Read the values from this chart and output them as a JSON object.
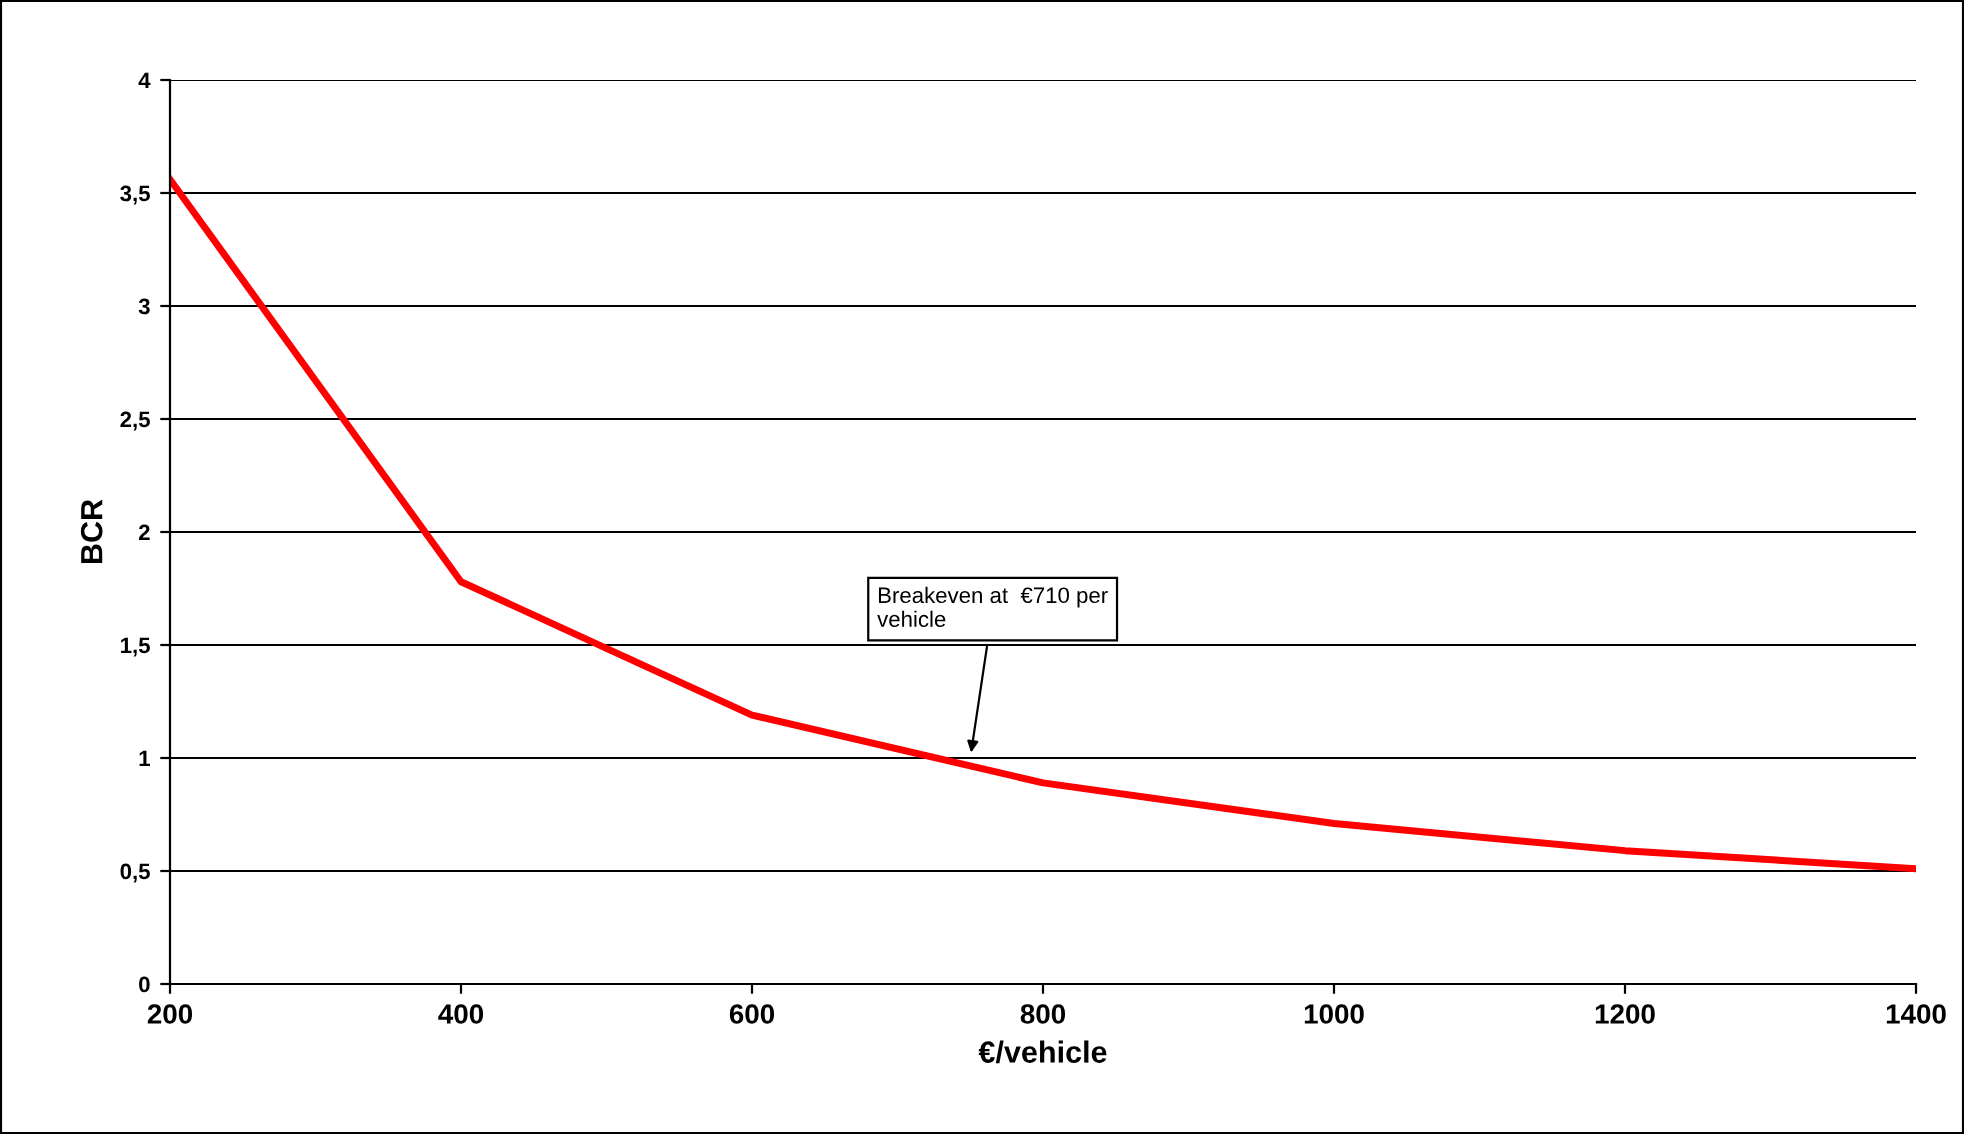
{
  "chart_data": {
    "type": "line",
    "xlabel": "€/vehicle",
    "ylabel": "BCR",
    "x": [
      200,
      400,
      600,
      800,
      1000,
      1200,
      1400
    ],
    "series": [
      {
        "color": "#ff0000",
        "values": [
          3.56,
          1.78,
          1.19,
          0.89,
          0.71,
          0.59,
          0.51
        ]
      }
    ],
    "xlim": [
      200,
      1400
    ],
    "xticks": [
      200,
      400,
      600,
      800,
      1000,
      1200,
      1400
    ],
    "ylim": [
      0,
      4
    ],
    "yticks": [
      0,
      {
        "value": 0.5,
        "label": "0,5"
      },
      1,
      {
        "value": 1.5,
        "label": "1,5"
      },
      2,
      {
        "value": 2.5,
        "label": "2,5"
      },
      3,
      {
        "value": 3.5,
        "label": "3,5"
      },
      4
    ],
    "grid": "y",
    "marker": "none",
    "line_style": "solid",
    "legend": false,
    "annotations": [
      {
        "text": "Breakeven at  €710 per\nvehicle",
        "x": 750,
        "y": 1.0
      }
    ]
  }
}
